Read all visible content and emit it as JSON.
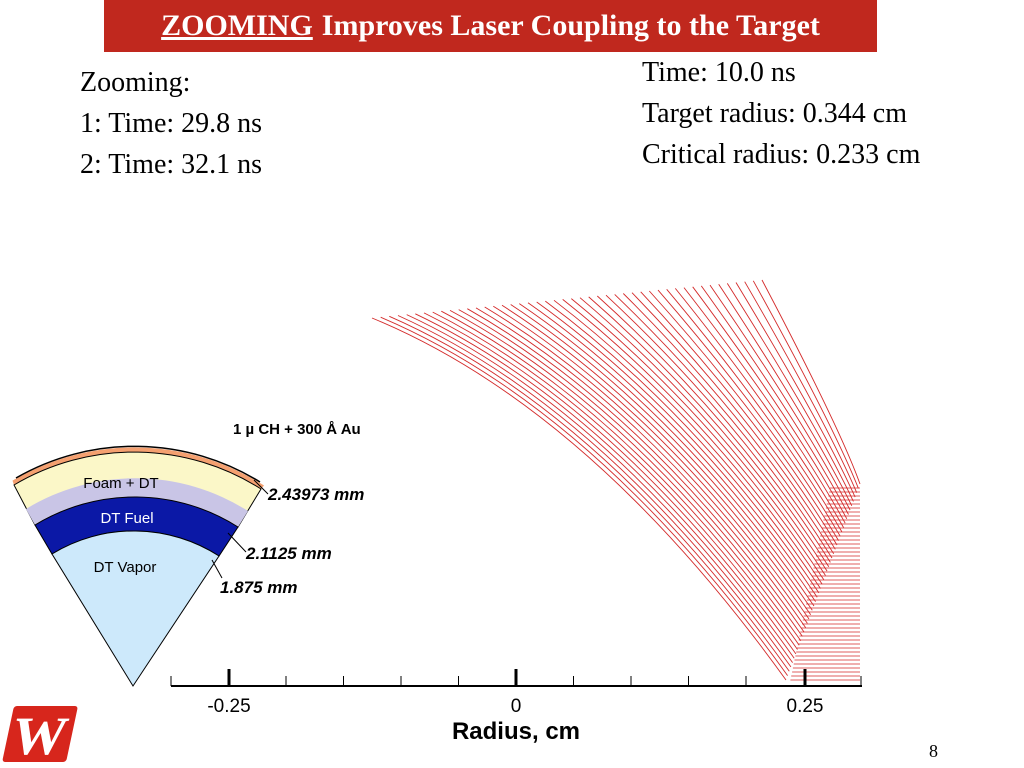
{
  "slide": {
    "title_underlined": "ZOOMING",
    "title_rest": "Improves Laser Coupling to the Target",
    "page_number": "8",
    "colors": {
      "title_bg": "#c0281e",
      "rays": "#d42a2a",
      "logo": "#d7261c"
    }
  },
  "zooming_info": {
    "heading": "Zooming:",
    "line1": "1: Time: 29.8 ns",
    "line2": "2: Time: 32.1 ns"
  },
  "target_info": {
    "time": "Time: 10.0 ns",
    "target_radius": "Target radius: 0.344 cm",
    "critical_radius": "Critical radius: 0.233 cm"
  },
  "target_diagram": {
    "shell_label": "1 µ CH + 300 Å Au",
    "layers": [
      {
        "name": "Foam + DT",
        "color": "#fbf7c8"
      },
      {
        "name": "DT Fuel",
        "color": "#0b18a6"
      },
      {
        "name": "DT Vapor",
        "color": "#cde9fb"
      }
    ],
    "radii_labels": [
      "2.43973 mm",
      "2.1125 mm",
      "1.875 mm"
    ],
    "ablator_color": "#f4a070"
  },
  "axis": {
    "ticks": [
      "-0.25",
      "0",
      "0.25"
    ],
    "label": "Radius, cm"
  },
  "logo": {
    "glyph": "W",
    "name": "university-logo"
  }
}
